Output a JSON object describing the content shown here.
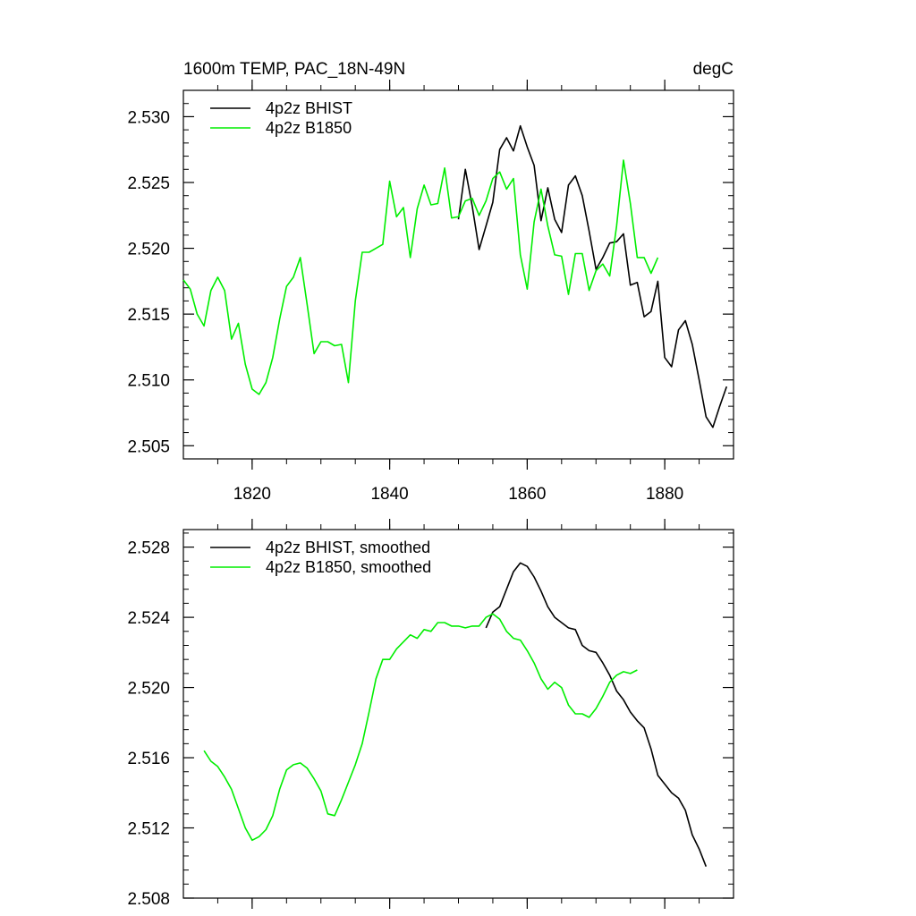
{
  "chart_data": [
    {
      "type": "line",
      "title": "1600m TEMP, PAC_18N-49N",
      "units": "degC",
      "xlim": [
        1810,
        1890
      ],
      "ylim": [
        2.504,
        2.532
      ],
      "xticks": [
        1820,
        1840,
        1860,
        1880
      ],
      "xtick_labels": [
        "1820",
        "1840",
        "1860",
        "1880"
      ],
      "yticks": [
        2.505,
        2.51,
        2.515,
        2.52,
        2.525,
        2.53
      ],
      "ytick_labels": [
        "2.505",
        "2.510",
        "2.515",
        "2.520",
        "2.525",
        "2.530"
      ],
      "legend_position": "top-left",
      "series": [
        {
          "name": "4p2z BHIST",
          "color": "#000000",
          "x": [
            1850,
            1851,
            1852,
            1853,
            1854,
            1855,
            1856,
            1857,
            1858,
            1859,
            1860,
            1861,
            1862,
            1863,
            1864,
            1865,
            1866,
            1867,
            1868,
            1869,
            1870,
            1871,
            1872,
            1873,
            1874,
            1875,
            1876,
            1877,
            1878,
            1879,
            1880,
            1881,
            1882,
            1883,
            1884,
            1885,
            1886,
            1887,
            1888,
            1889
          ],
          "values": [
            2.5222,
            2.526,
            2.5232,
            2.5199,
            2.5217,
            2.5235,
            2.5275,
            2.5284,
            2.5274,
            2.5293,
            2.5277,
            2.5263,
            2.5221,
            2.5246,
            2.5222,
            2.5212,
            2.5248,
            2.5255,
            2.524,
            2.5213,
            2.5184,
            2.5193,
            2.5204,
            2.5205,
            2.5211,
            2.5172,
            2.5174,
            2.5148,
            2.5152,
            2.5175,
            2.5117,
            2.511,
            2.5138,
            2.5145,
            2.5127,
            2.51,
            2.5072,
            2.5064,
            2.508,
            2.5095
          ]
        },
        {
          "name": "4p2z B1850",
          "color": "#00ee00",
          "x": [
            1810,
            1811,
            1812,
            1813,
            1814,
            1815,
            1816,
            1817,
            1818,
            1819,
            1820,
            1821,
            1822,
            1823,
            1824,
            1825,
            1826,
            1827,
            1828,
            1829,
            1830,
            1831,
            1832,
            1833,
            1834,
            1835,
            1836,
            1837,
            1838,
            1839,
            1840,
            1841,
            1842,
            1843,
            1844,
            1845,
            1846,
            1847,
            1848,
            1849,
            1850,
            1851,
            1852,
            1853,
            1854,
            1855,
            1856,
            1857,
            1858,
            1859,
            1860,
            1861,
            1862,
            1863,
            1864,
            1865,
            1866,
            1867,
            1868,
            1869,
            1870,
            1871,
            1872,
            1873,
            1874,
            1875,
            1876,
            1877,
            1878,
            1879
          ],
          "values": [
            2.5176,
            2.5169,
            2.515,
            2.5141,
            2.5168,
            2.5178,
            2.5168,
            2.5131,
            2.5143,
            2.5112,
            2.5093,
            2.5089,
            2.5098,
            2.5117,
            2.5146,
            2.5171,
            2.5178,
            2.5193,
            2.5157,
            2.512,
            2.5129,
            2.5129,
            2.5126,
            2.5127,
            2.5098,
            2.516,
            2.5197,
            2.5197,
            2.52,
            2.5203,
            2.5251,
            2.5224,
            2.5231,
            2.5193,
            2.523,
            2.5248,
            2.5233,
            2.5234,
            2.5261,
            2.5223,
            2.5224,
            2.5236,
            2.5238,
            2.5225,
            2.5236,
            2.5253,
            2.5258,
            2.5245,
            2.5253,
            2.5195,
            2.5169,
            2.522,
            2.5245,
            2.5217,
            2.5195,
            2.5194,
            2.5165,
            2.5196,
            2.5196,
            2.5168,
            2.5183,
            2.5188,
            2.5179,
            2.5217,
            2.5267,
            2.5234,
            2.5193,
            2.5193,
            2.5181,
            2.5193
          ]
        }
      ]
    },
    {
      "type": "line",
      "title": "",
      "units": "",
      "xlim": [
        1810,
        1890
      ],
      "ylim": [
        2.508,
        2.529
      ],
      "xticks": [
        1820,
        1840,
        1860,
        1880
      ],
      "xtick_labels": [],
      "yticks": [
        2.508,
        2.512,
        2.516,
        2.52,
        2.524,
        2.528
      ],
      "ytick_labels": [
        "2.508",
        "2.512",
        "2.516",
        "2.520",
        "2.524",
        "2.528"
      ],
      "legend_position": "top-left",
      "series": [
        {
          "name": "4p2z BHIST, smoothed",
          "color": "#000000",
          "x": [
            1854,
            1855,
            1856,
            1857,
            1858,
            1859,
            1860,
            1861,
            1862,
            1863,
            1864,
            1865,
            1866,
            1867,
            1868,
            1869,
            1870,
            1871,
            1872,
            1873,
            1874,
            1875,
            1876,
            1877,
            1878,
            1879,
            1880,
            1881,
            1882,
            1883,
            1884,
            1885,
            1886
          ],
          "values": [
            2.5234,
            2.5243,
            2.5246,
            2.5256,
            2.5266,
            2.5271,
            2.5269,
            2.5263,
            2.5255,
            2.5246,
            2.524,
            2.5237,
            2.5234,
            2.5233,
            2.5224,
            2.5221,
            2.522,
            2.5214,
            2.5207,
            2.5198,
            2.5193,
            2.5186,
            2.5181,
            2.5177,
            2.5165,
            2.515,
            2.5145,
            2.514,
            2.5137,
            2.513,
            2.5116,
            2.5108,
            2.5098
          ]
        },
        {
          "name": "4p2z B1850, smoothed",
          "color": "#00ee00",
          "x": [
            1813,
            1814,
            1815,
            1816,
            1817,
            1818,
            1819,
            1820,
            1821,
            1822,
            1823,
            1824,
            1825,
            1826,
            1827,
            1828,
            1829,
            1830,
            1831,
            1832,
            1833,
            1834,
            1835,
            1836,
            1837,
            1838,
            1839,
            1840,
            1841,
            1842,
            1843,
            1844,
            1845,
            1846,
            1847,
            1848,
            1849,
            1850,
            1851,
            1852,
            1853,
            1854,
            1855,
            1856,
            1857,
            1858,
            1859,
            1860,
            1861,
            1862,
            1863,
            1864,
            1865,
            1866,
            1867,
            1868,
            1869,
            1870,
            1871,
            1872,
            1873,
            1874,
            1875,
            1876
          ],
          "values": [
            2.5164,
            2.5158,
            2.5155,
            2.5149,
            2.5142,
            2.5131,
            2.512,
            2.5113,
            2.5115,
            2.5119,
            2.5127,
            2.5142,
            2.5153,
            2.5156,
            2.5157,
            2.5154,
            2.5148,
            2.5141,
            2.5128,
            2.5127,
            2.5136,
            2.5146,
            2.5156,
            2.5168,
            2.5186,
            2.5205,
            2.5216,
            2.5216,
            2.5222,
            2.5226,
            2.523,
            2.5228,
            2.5233,
            2.5232,
            2.5237,
            2.5237,
            2.5235,
            2.5235,
            2.5234,
            2.5235,
            2.5235,
            2.524,
            2.5242,
            2.5239,
            2.5232,
            2.5228,
            2.5227,
            2.5221,
            2.5214,
            2.5205,
            2.5199,
            2.5203,
            2.52,
            2.519,
            2.5185,
            2.5185,
            2.5183,
            2.5188,
            2.5195,
            2.5203,
            2.5207,
            2.5209,
            2.5208,
            2.521
          ]
        }
      ]
    }
  ]
}
